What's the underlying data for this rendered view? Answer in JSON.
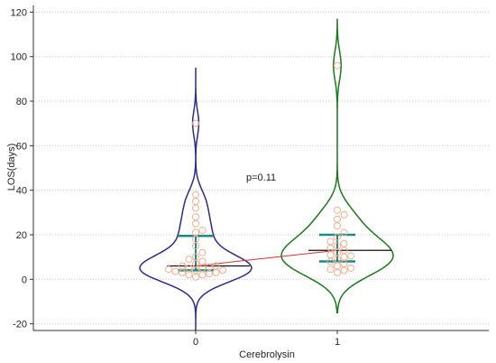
{
  "chart_data": {
    "type": "violin",
    "xlabel": "Cerebrolysin",
    "ylabel": "LOS(days)",
    "categories": [
      "0",
      "1"
    ],
    "ylim": [
      -23,
      123
    ],
    "yticks": [
      "-20",
      "0",
      "20",
      "40",
      "60",
      "80",
      "100",
      "120"
    ],
    "grid": "horizontal dotted",
    "annotation": "p=0.11",
    "groups": [
      {
        "category": "0",
        "color": "#2e2a8a",
        "median": 6,
        "ci": [
          4,
          19.5
        ],
        "range": [
          -23,
          95
        ],
        "points": [
          1,
          2,
          2,
          2.5,
          3,
          3,
          3.5,
          4,
          4,
          4.5,
          5,
          5,
          5.5,
          6,
          6,
          7,
          8,
          9,
          10,
          12,
          15,
          18,
          21,
          22,
          25,
          28,
          32,
          35,
          38,
          70
        ]
      },
      {
        "category": "1",
        "color": "#1a7a1a",
        "median": 13,
        "ci": [
          8,
          20
        ],
        "range": [
          -15,
          117
        ],
        "points": [
          3,
          4,
          4.5,
          5,
          6,
          7,
          8,
          9,
          10,
          10.5,
          11,
          12,
          13,
          14,
          15,
          16,
          17,
          19,
          21,
          24,
          27,
          29,
          31,
          96
        ]
      }
    ],
    "connector_color": "#e03030",
    "point_color": "#f0b090"
  }
}
